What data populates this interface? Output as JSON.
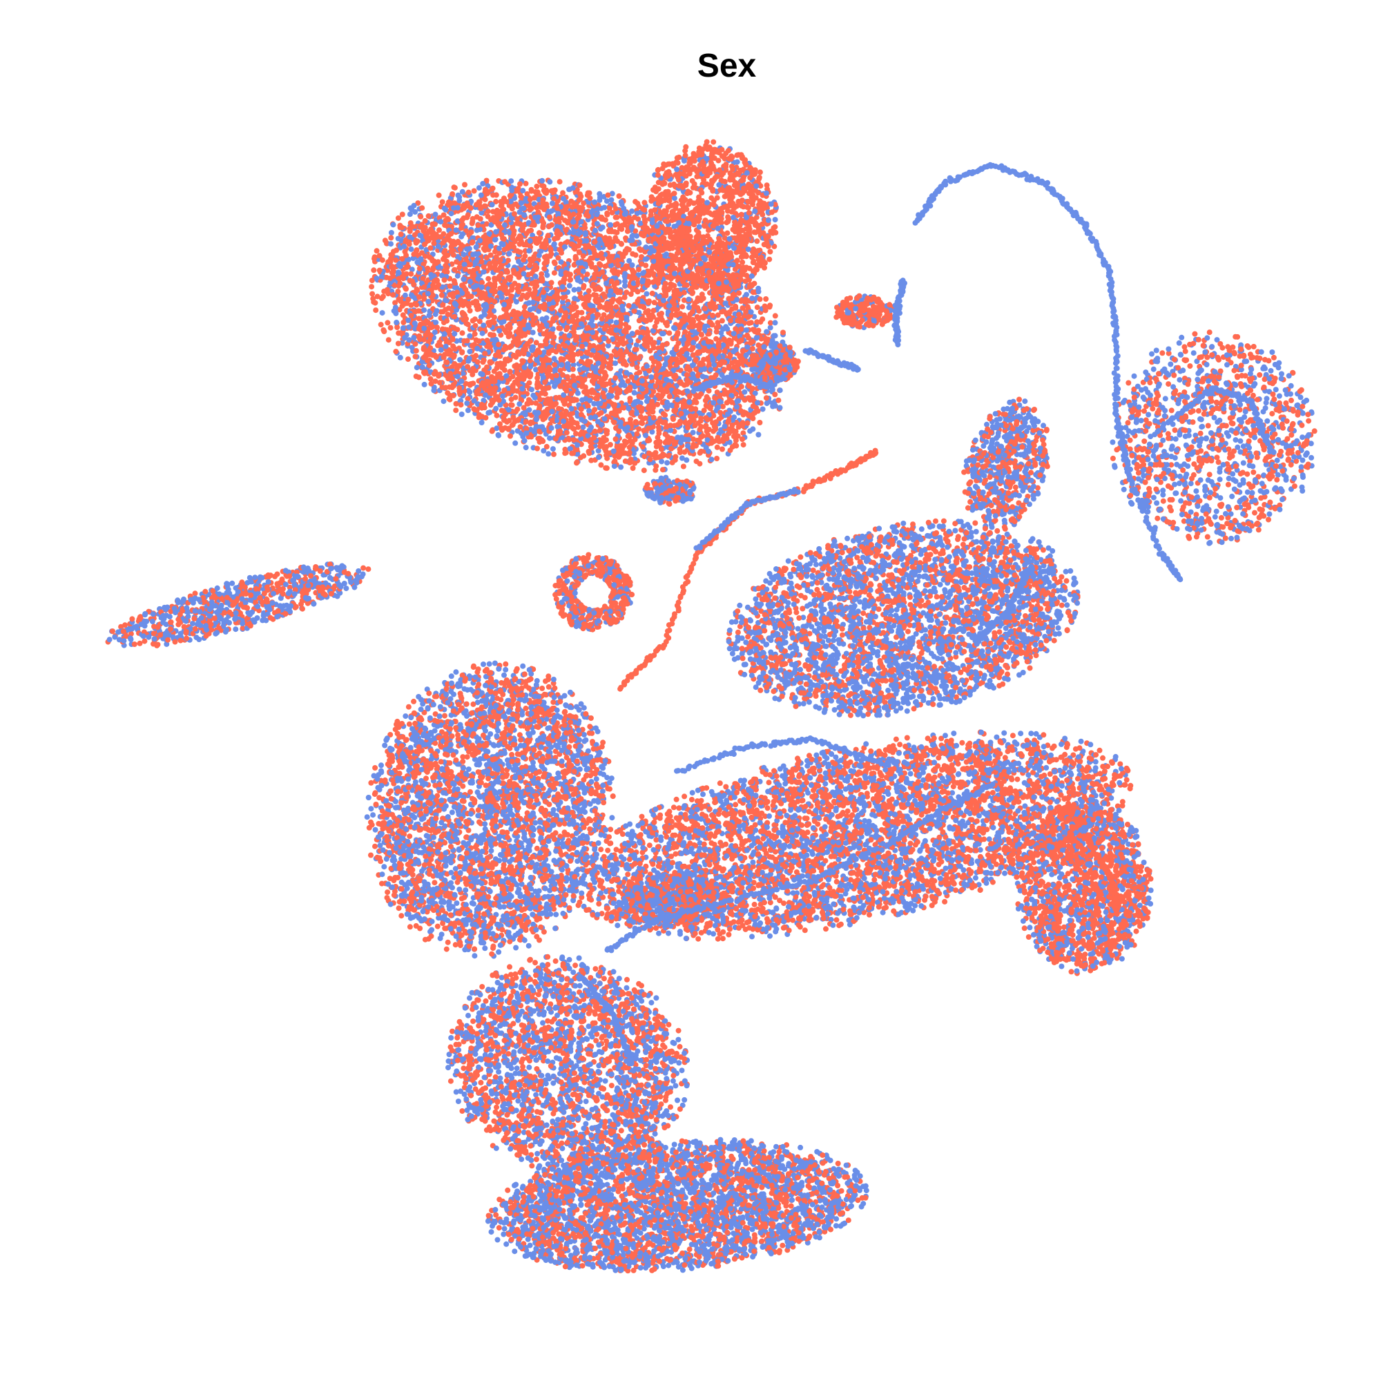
{
  "chart_data": {
    "type": "scatter",
    "title": "Sex",
    "xlabel": "",
    "ylabel": "",
    "axes_visible": false,
    "grid": false,
    "legend": "none",
    "xlim": [
      -50,
      50
    ],
    "ylim": [
      -50,
      50
    ],
    "point_count_approx": 30000,
    "series": [
      {
        "color": "#FF6A50",
        "share": 0.52
      },
      {
        "color": "#6A8EE8",
        "share": 0.48
      }
    ],
    "clusters": [
      {
        "cx": -12.0,
        "cy": 30.0,
        "rx": 16.0,
        "ry": 10.0,
        "angle": -20,
        "weight": 0.2,
        "red": 0.68
      },
      {
        "cx": -2.0,
        "cy": 38.0,
        "rx": 5.0,
        "ry": 6.0,
        "angle": 0,
        "weight": 0.04,
        "red": 0.85
      },
      {
        "cx": -38.5,
        "cy": 8.0,
        "rx": 10.0,
        "ry": 1.8,
        "angle": 15,
        "weight": 0.025,
        "red": 0.45
      },
      {
        "cx": -11.0,
        "cy": 9.0,
        "rx": 3.0,
        "ry": 3.0,
        "angle": 0,
        "weight": 0.015,
        "red": 0.7,
        "ring": true
      },
      {
        "cx": 37.0,
        "cy": 21.0,
        "rx": 7.5,
        "ry": 8.0,
        "angle": 0,
        "weight": 0.04,
        "red": 0.55
      },
      {
        "cx": 13.0,
        "cy": 7.0,
        "rx": 13.0,
        "ry": 7.0,
        "angle": 10,
        "weight": 0.11,
        "red": 0.4
      },
      {
        "cx": -19.0,
        "cy": -8.0,
        "rx": 9.0,
        "ry": 11.0,
        "angle": -10,
        "weight": 0.12,
        "red": 0.5
      },
      {
        "cx": 9.0,
        "cy": -10.0,
        "rx": 21.0,
        "ry": 6.5,
        "angle": 12,
        "weight": 0.16,
        "red": 0.58
      },
      {
        "cx": 27.0,
        "cy": -14.0,
        "rx": 5.0,
        "ry": 6.5,
        "angle": 0,
        "weight": 0.05,
        "red": 0.62
      },
      {
        "cx": -13.0,
        "cy": -28.0,
        "rx": 9.0,
        "ry": 8.0,
        "angle": -20,
        "weight": 0.08,
        "red": 0.5
      },
      {
        "cx": -4.5,
        "cy": -39.0,
        "rx": 14.0,
        "ry": 4.8,
        "angle": 5,
        "weight": 0.11,
        "red": 0.42
      },
      {
        "cx": -5.0,
        "cy": -15.0,
        "rx": 3.5,
        "ry": 2.0,
        "angle": 0,
        "weight": 0.015,
        "red": 0.45
      },
      {
        "cx": 3.0,
        "cy": 27.0,
        "rx": 1.8,
        "ry": 1.5,
        "angle": 0,
        "weight": 0.01,
        "red": 0.5
      },
      {
        "cx": 10.0,
        "cy": 31.0,
        "rx": 2.2,
        "ry": 1.2,
        "angle": 0,
        "weight": 0.006,
        "red": 0.75
      },
      {
        "cx": 21.0,
        "cy": 19.0,
        "rx": 3.0,
        "ry": 5.0,
        "angle": -15,
        "weight": 0.02,
        "red": 0.4
      },
      {
        "cx": -5.0,
        "cy": 17.0,
        "rx": 2.0,
        "ry": 1.0,
        "angle": 0,
        "weight": 0.005,
        "red": 0.4
      }
    ],
    "curves": [
      {
        "color": "#FF6A50",
        "points": [
          [
            -9.0,
            1.5
          ],
          [
            -5.5,
            5.0
          ],
          [
            -3.0,
            12.0
          ],
          [
            1.0,
            16.0
          ],
          [
            5.0,
            17.0
          ],
          [
            9.0,
            19.0
          ],
          [
            11.0,
            20.0
          ]
        ]
      },
      {
        "color": "#6A8EE8",
        "points": [
          [
            -3.0,
            12.5
          ],
          [
            1.0,
            16.0
          ],
          [
            5.0,
            17.0
          ]
        ]
      },
      {
        "color": "#6A8EE8",
        "points": [
          [
            14.0,
            38.0
          ],
          [
            16.0,
            41.0
          ],
          [
            20.0,
            42.5
          ],
          [
            24.0,
            41.0
          ],
          [
            27.0,
            38.0
          ],
          [
            29.0,
            34.0
          ],
          [
            29.5,
            29.0
          ],
          [
            29.5,
            23.0
          ],
          [
            30.5,
            18.0
          ],
          [
            33.0,
            12.0
          ],
          [
            34.5,
            10.0
          ]
        ]
      },
      {
        "color": "#6A8EE8",
        "points": [
          [
            -4.5,
            -5.0
          ],
          [
            1.0,
            -3.0
          ],
          [
            6.0,
            -2.5
          ],
          [
            12.0,
            -4.5
          ]
        ]
      },
      {
        "color": "#6A8EE8",
        "points": [
          [
            -10.0,
            -19.0
          ],
          [
            -6.0,
            -16.5
          ],
          [
            0.0,
            -15.0
          ],
          [
            6.0,
            -13.5
          ],
          [
            12.0,
            -10.5
          ],
          [
            16.0,
            -8.0
          ],
          [
            20.0,
            -6.0
          ]
        ]
      },
      {
        "color": "#6A8EE8",
        "points": [
          [
            -12.0,
            -21.0
          ],
          [
            -9.5,
            -24.0
          ],
          [
            -8.0,
            -28.0
          ]
        ]
      },
      {
        "color": "#6A8EE8",
        "points": [
          [
            -3.0,
            25.0
          ],
          [
            0.0,
            26.0
          ],
          [
            3.0,
            25.0
          ]
        ]
      },
      {
        "color": "#6A8EE8",
        "points": [
          [
            33.0,
            22.0
          ],
          [
            37.0,
            25.0
          ],
          [
            40.0,
            24.0
          ],
          [
            41.5,
            20.0
          ]
        ]
      },
      {
        "color": "#6A8EE8",
        "points": [
          [
            13.0,
            33.5
          ],
          [
            12.5,
            31.0
          ],
          [
            12.5,
            28.5
          ]
        ]
      },
      {
        "color": "#6A8EE8",
        "points": [
          [
            5.5,
            28.0
          ],
          [
            8.0,
            27.0
          ],
          [
            9.5,
            26.5
          ]
        ]
      },
      {
        "color": "#FF6A50",
        "points": [
          [
            27.0,
            -10.0
          ],
          [
            29.0,
            -13.0
          ],
          [
            29.5,
            -16.0
          ]
        ]
      },
      {
        "color": "#6A8EE8",
        "points": [
          [
            23.0,
            11.0
          ],
          [
            21.0,
            7.5
          ],
          [
            18.5,
            5.0
          ]
        ]
      }
    ]
  }
}
